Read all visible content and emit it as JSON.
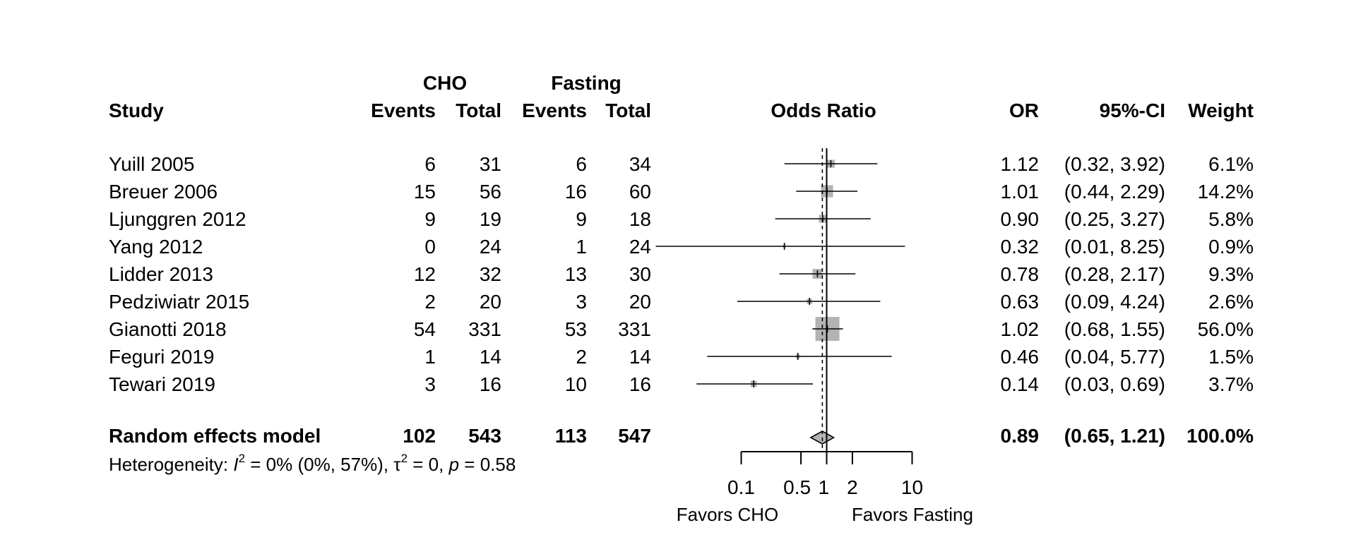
{
  "chart_data": {
    "type": "forest",
    "headers": {
      "study": "Study",
      "group1": "CHO",
      "group2": "Fasting",
      "events": "Events",
      "total": "Total",
      "effect": "Odds Ratio",
      "or": "OR",
      "ci": "95%-CI",
      "weight": "Weight"
    },
    "studies": [
      {
        "name": "Yuill 2005",
        "cho_events": "6",
        "cho_total": "31",
        "fast_events": "6",
        "fast_total": "34",
        "or": 1.12,
        "lower": 0.32,
        "upper": 3.92,
        "or_text": "1.12",
        "ci_text": "(0.32, 3.92)",
        "weight": 6.1,
        "weight_text": "6.1%"
      },
      {
        "name": "Breuer 2006",
        "cho_events": "15",
        "cho_total": "56",
        "fast_events": "16",
        "fast_total": "60",
        "or": 1.01,
        "lower": 0.44,
        "upper": 2.29,
        "or_text": "1.01",
        "ci_text": "(0.44, 2.29)",
        "weight": 14.2,
        "weight_text": "14.2%"
      },
      {
        "name": "Ljunggren 2012",
        "cho_events": "9",
        "cho_total": "19",
        "fast_events": "9",
        "fast_total": "18",
        "or": 0.9,
        "lower": 0.25,
        "upper": 3.27,
        "or_text": "0.90",
        "ci_text": "(0.25, 3.27)",
        "weight": 5.8,
        "weight_text": "5.8%"
      },
      {
        "name": "Yang 2012",
        "cho_events": "0",
        "cho_total": "24",
        "fast_events": "1",
        "fast_total": "24",
        "or": 0.32,
        "lower": 0.01,
        "upper": 8.25,
        "or_text": "0.32",
        "ci_text": "(0.01, 8.25)",
        "weight": 0.9,
        "weight_text": "0.9%"
      },
      {
        "name": "Lidder 2013",
        "cho_events": "12",
        "cho_total": "32",
        "fast_events": "13",
        "fast_total": "30",
        "or": 0.78,
        "lower": 0.28,
        "upper": 2.17,
        "or_text": "0.78",
        "ci_text": "(0.28, 2.17)",
        "weight": 9.3,
        "weight_text": "9.3%"
      },
      {
        "name": "Pedziwiatr 2015",
        "cho_events": "2",
        "cho_total": "20",
        "fast_events": "3",
        "fast_total": "20",
        "or": 0.63,
        "lower": 0.09,
        "upper": 4.24,
        "or_text": "0.63",
        "ci_text": "(0.09, 4.24)",
        "weight": 2.6,
        "weight_text": "2.6%"
      },
      {
        "name": "Gianotti 2018",
        "cho_events": "54",
        "cho_total": "331",
        "fast_events": "53",
        "fast_total": "331",
        "or": 1.02,
        "lower": 0.68,
        "upper": 1.55,
        "or_text": "1.02",
        "ci_text": "(0.68, 1.55)",
        "weight": 56.0,
        "weight_text": "56.0%"
      },
      {
        "name": "Feguri 2019",
        "cho_events": "1",
        "cho_total": "14",
        "fast_events": "2",
        "fast_total": "14",
        "or": 0.46,
        "lower": 0.04,
        "upper": 5.77,
        "or_text": "0.46",
        "ci_text": "(0.04, 5.77)",
        "weight": 1.5,
        "weight_text": "1.5%"
      },
      {
        "name": "Tewari 2019",
        "cho_events": "3",
        "cho_total": "16",
        "fast_events": "10",
        "fast_total": "16",
        "or": 0.14,
        "lower": 0.03,
        "upper": 0.69,
        "or_text": "0.14",
        "ci_text": "(0.03, 0.69)",
        "weight": 3.7,
        "weight_text": "3.7%"
      }
    ],
    "pooled": {
      "name": "Random effects model",
      "cho_events": "102",
      "cho_total": "543",
      "fast_events": "113",
      "fast_total": "547",
      "or": 0.89,
      "lower": 0.65,
      "upper": 1.21,
      "or_text": "0.89",
      "ci_text": "(0.65, 1.21)",
      "weight_text": "100.0%"
    },
    "heterogeneity": {
      "prefix": "Heterogeneity: ",
      "i2_symbol": "I",
      "sup": "2",
      "i2_text": " = 0% (0%, 57%), ",
      "tau_symbol": "τ",
      "tau_text": " = 0, ",
      "p_symbol": "p",
      "p_text": " = 0.58"
    },
    "axis": {
      "scale": "log",
      "ticks": [
        0.1,
        0.5,
        1,
        2,
        10
      ],
      "tick_labels": [
        "0.1",
        "0.5",
        "1",
        "2",
        "10"
      ],
      "xlim": [
        0.01,
        10
      ],
      "null_value": 1,
      "left_label": "Favors CHO",
      "right_label": "Favors Fasting"
    },
    "colors": {
      "square": "#b3b3b3",
      "diamond": "#b3b3b3",
      "line": "#000000"
    }
  }
}
